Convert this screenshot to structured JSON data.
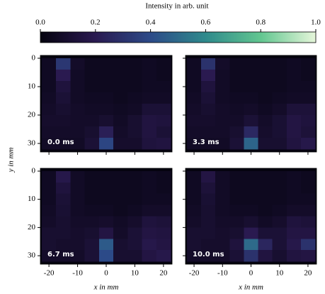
{
  "chart_data": {
    "type": "heatmap",
    "colorbar": {
      "label": "Intensity in arb. unit",
      "lim": [
        0,
        1
      ],
      "ticks": [
        {
          "value": 0,
          "label": "0.0"
        },
        0.2,
        0.4,
        0.6,
        0.8,
        {
          "value": 1,
          "label": "1.0"
        }
      ]
    },
    "colormap": [
      "#05030f",
      "#2a1a50",
      "#2c4a88",
      "#2f8a8c",
      "#62c690",
      "#e6f6da"
    ],
    "xlabel": "x in mm",
    "ylabel": "y in mm",
    "xlim": [
      -23,
      23
    ],
    "xticks": [
      -20,
      -10,
      0,
      10,
      20
    ],
    "ylim": [
      33,
      -1
    ],
    "yticks": [
      0,
      10,
      20,
      30
    ],
    "x_bins": [
      -22.5,
      -17.5,
      -12.5,
      -7.5,
      -2.5,
      2.5,
      7.5,
      12.5,
      17.5,
      22.5
    ],
    "y_bins": [
      0,
      4,
      8,
      12,
      16,
      20,
      24,
      28,
      32
    ],
    "panels": [
      {
        "label": "0.0 ms",
        "z": [
          [
            0.06,
            0.32,
            0.08,
            0.05,
            0.05,
            0.05,
            0.05,
            0.06,
            0.05
          ],
          [
            0.06,
            0.2,
            0.07,
            0.05,
            0.05,
            0.05,
            0.05,
            0.06,
            0.05
          ],
          [
            0.06,
            0.14,
            0.07,
            0.05,
            0.05,
            0.05,
            0.05,
            0.06,
            0.06
          ],
          [
            0.07,
            0.12,
            0.07,
            0.06,
            0.06,
            0.05,
            0.06,
            0.07,
            0.07
          ],
          [
            0.08,
            0.1,
            0.08,
            0.07,
            0.07,
            0.06,
            0.07,
            0.12,
            0.12
          ],
          [
            0.09,
            0.09,
            0.08,
            0.08,
            0.1,
            0.07,
            0.1,
            0.15,
            0.14
          ],
          [
            0.08,
            0.08,
            0.08,
            0.1,
            0.22,
            0.08,
            0.1,
            0.15,
            0.12
          ],
          [
            0.07,
            0.07,
            0.07,
            0.12,
            0.38,
            0.09,
            0.09,
            0.14,
            0.15
          ]
        ]
      },
      {
        "label": "3.3 ms",
        "z": [
          [
            0.06,
            0.3,
            0.08,
            0.05,
            0.05,
            0.05,
            0.05,
            0.06,
            0.05
          ],
          [
            0.06,
            0.2,
            0.07,
            0.05,
            0.05,
            0.05,
            0.05,
            0.06,
            0.05
          ],
          [
            0.06,
            0.14,
            0.07,
            0.05,
            0.05,
            0.05,
            0.05,
            0.06,
            0.06
          ],
          [
            0.07,
            0.12,
            0.07,
            0.06,
            0.06,
            0.05,
            0.06,
            0.07,
            0.07
          ],
          [
            0.08,
            0.1,
            0.08,
            0.07,
            0.08,
            0.06,
            0.08,
            0.13,
            0.13
          ],
          [
            0.09,
            0.09,
            0.08,
            0.08,
            0.12,
            0.08,
            0.11,
            0.16,
            0.14
          ],
          [
            0.08,
            0.08,
            0.08,
            0.1,
            0.26,
            0.09,
            0.11,
            0.16,
            0.13
          ],
          [
            0.07,
            0.07,
            0.07,
            0.12,
            0.48,
            0.1,
            0.1,
            0.15,
            0.18
          ]
        ]
      },
      {
        "label": "6.7 ms",
        "z": [
          [
            0.06,
            0.18,
            0.07,
            0.05,
            0.05,
            0.05,
            0.05,
            0.06,
            0.05
          ],
          [
            0.06,
            0.14,
            0.07,
            0.05,
            0.05,
            0.05,
            0.05,
            0.06,
            0.05
          ],
          [
            0.06,
            0.12,
            0.07,
            0.05,
            0.05,
            0.05,
            0.05,
            0.06,
            0.06
          ],
          [
            0.07,
            0.11,
            0.07,
            0.06,
            0.06,
            0.05,
            0.06,
            0.08,
            0.08
          ],
          [
            0.08,
            0.1,
            0.08,
            0.08,
            0.09,
            0.07,
            0.09,
            0.14,
            0.13
          ],
          [
            0.1,
            0.1,
            0.09,
            0.1,
            0.16,
            0.08,
            0.12,
            0.16,
            0.15
          ],
          [
            0.1,
            0.09,
            0.09,
            0.12,
            0.45,
            0.1,
            0.12,
            0.18,
            0.16
          ],
          [
            0.08,
            0.08,
            0.08,
            0.12,
            0.4,
            0.1,
            0.1,
            0.16,
            0.18
          ]
        ]
      },
      {
        "label": "10.0 ms",
        "z": [
          [
            0.06,
            0.16,
            0.07,
            0.05,
            0.05,
            0.05,
            0.05,
            0.06,
            0.05
          ],
          [
            0.06,
            0.13,
            0.07,
            0.05,
            0.05,
            0.05,
            0.05,
            0.06,
            0.05
          ],
          [
            0.06,
            0.11,
            0.07,
            0.05,
            0.05,
            0.05,
            0.05,
            0.06,
            0.06
          ],
          [
            0.07,
            0.1,
            0.07,
            0.06,
            0.06,
            0.05,
            0.06,
            0.08,
            0.08
          ],
          [
            0.08,
            0.1,
            0.08,
            0.08,
            0.1,
            0.07,
            0.09,
            0.14,
            0.13
          ],
          [
            0.1,
            0.1,
            0.09,
            0.1,
            0.2,
            0.12,
            0.12,
            0.16,
            0.16
          ],
          [
            0.1,
            0.09,
            0.09,
            0.14,
            0.5,
            0.25,
            0.12,
            0.18,
            0.3
          ],
          [
            0.08,
            0.08,
            0.08,
            0.12,
            0.3,
            0.15,
            0.1,
            0.15,
            0.16
          ]
        ]
      }
    ]
  }
}
